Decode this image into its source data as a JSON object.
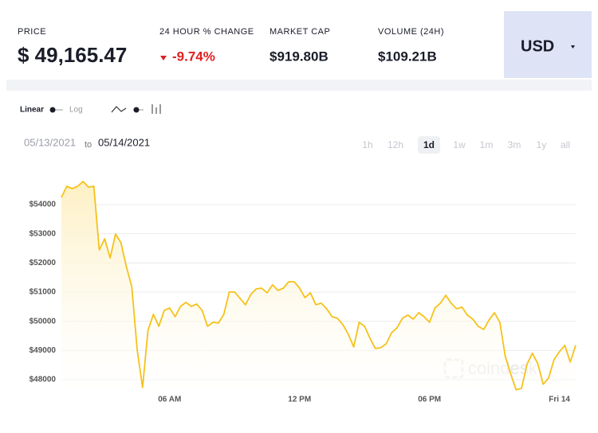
{
  "header": {
    "price_label": "PRICE",
    "price": "$ 49,165.47",
    "change_label": "24 HOUR % CHANGE",
    "change": "-9.74%",
    "market_cap_label": "MARKET CAP",
    "market_cap": "$919.80B",
    "volume_label": "VOLUME (24H)",
    "volume": "$109.21B",
    "currency": "USD"
  },
  "controls": {
    "linear": "Linear",
    "log": "Log",
    "date_from": "05/13/2021",
    "date_to_word": "to",
    "date_to": "05/14/2021",
    "ranges": [
      "1h",
      "12h",
      "1d",
      "1w",
      "1m",
      "3m",
      "1y",
      "all"
    ],
    "active_range_index": 2
  },
  "chart_data": {
    "type": "line",
    "watermark": "coindesk",
    "color": "#f5c21b",
    "grid": true,
    "x": [
      1,
      1.25,
      1.5,
      1.75,
      2,
      2.25,
      2.5,
      2.75,
      3,
      3.25,
      3.5,
      3.75,
      4,
      4.25,
      4.5,
      4.75,
      5,
      5.25,
      5.5,
      5.75,
      6,
      6.25,
      6.5,
      6.75,
      7,
      7.25,
      7.5,
      7.75,
      8,
      8.25,
      8.5,
      8.75,
      9,
      9.25,
      9.5,
      9.75,
      10,
      10.25,
      10.5,
      10.75,
      11,
      11.25,
      11.5,
      11.75,
      12,
      12.25,
      12.5,
      12.75,
      13,
      13.25,
      13.5,
      13.75,
      14,
      14.25,
      14.5,
      14.75,
      15,
      15.25,
      15.5,
      15.75,
      16,
      16.25,
      16.5,
      16.75,
      17,
      17.25,
      17.5,
      17.75,
      18,
      18.25,
      18.5,
      18.75,
      19,
      19.25,
      19.5,
      19.75,
      20,
      20.25,
      20.5,
      20.75,
      21,
      21.25,
      21.5,
      21.75,
      22,
      22.25,
      22.5,
      22.75,
      23,
      23.25,
      23.5,
      23.75,
      24,
      24.25,
      24.5,
      24.75
    ],
    "values": [
      54245,
      54627,
      54545,
      54627,
      54790,
      54600,
      54627,
      52447,
      52828,
      52174,
      52992,
      52692,
      51875,
      51185,
      49013,
      47733,
      49695,
      50240,
      49831,
      50376,
      50458,
      50158,
      50512,
      50648,
      50512,
      50594,
      50376,
      49831,
      49967,
      49940,
      50240,
      51003,
      51003,
      50785,
      50567,
      50921,
      51111,
      51138,
      50975,
      51248,
      51057,
      51138,
      51357,
      51357,
      51138,
      50812,
      50975,
      50567,
      50621,
      50430,
      50158,
      50104,
      49886,
      49558,
      49122,
      49967,
      49831,
      49422,
      49068,
      49095,
      49231,
      49613,
      49776,
      50104,
      50213,
      50076,
      50294,
      50158,
      49967,
      50458,
      50621,
      50894,
      50621,
      50430,
      50485,
      50213,
      50076,
      49831,
      49722,
      50049,
      50294,
      49967,
      48796,
      48196,
      47651,
      47706,
      48523,
      48905,
      48550,
      47842,
      48060,
      48686,
      48959,
      49176,
      48604,
      49176
    ],
    "xlim": [
      1,
      24.75
    ],
    "xticks": [
      {
        "value": 6,
        "label": "06 AM"
      },
      {
        "value": 12,
        "label": "12 PM"
      },
      {
        "value": 18,
        "label": "06 PM"
      },
      {
        "value": 24,
        "label": "Fri 14"
      }
    ],
    "ylim": [
      47600,
      55200
    ],
    "yticks": [
      {
        "value": 48000,
        "label": "$48000"
      },
      {
        "value": 49000,
        "label": "$49000"
      },
      {
        "value": 50000,
        "label": "$50000"
      },
      {
        "value": 51000,
        "label": "$51000"
      },
      {
        "value": 52000,
        "label": "$52000"
      },
      {
        "value": 53000,
        "label": "$53000"
      },
      {
        "value": 54000,
        "label": "$54000"
      }
    ]
  }
}
